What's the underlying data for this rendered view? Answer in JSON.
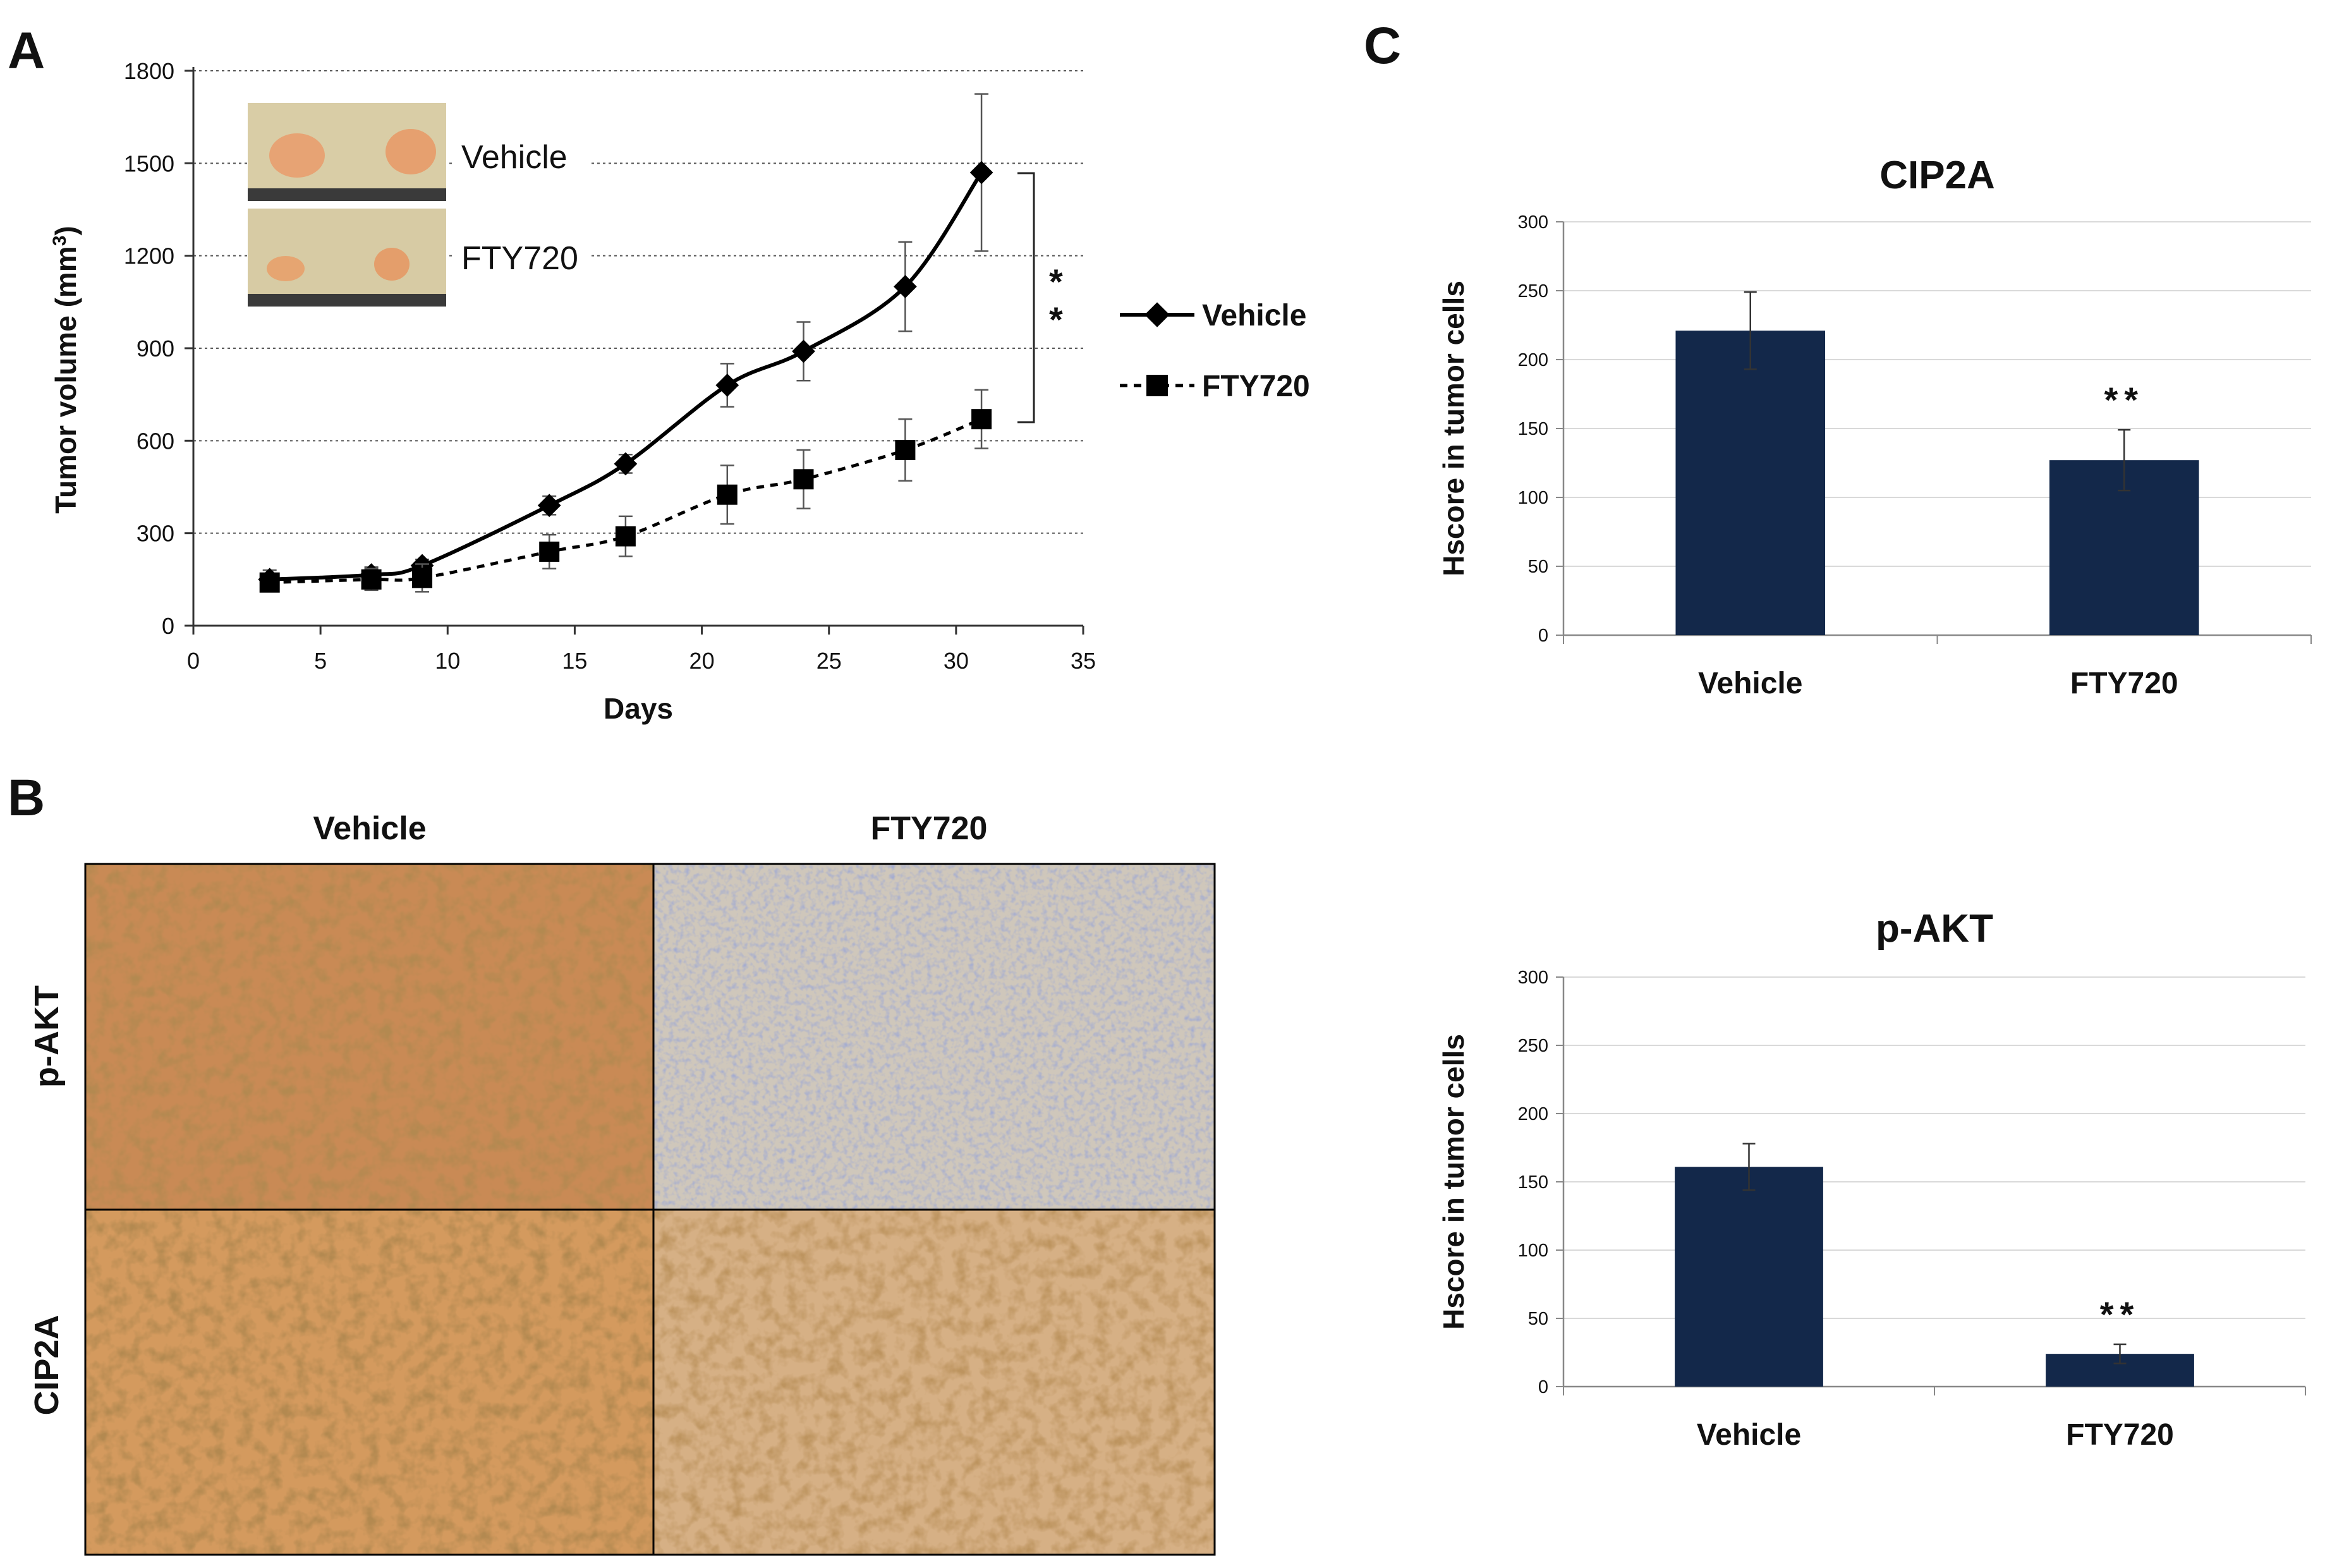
{
  "panels": {
    "a": {
      "letter": "A"
    },
    "b": {
      "letter": "B"
    },
    "c": {
      "letter": "C"
    }
  },
  "colors": {
    "bar_fill": "#13284a",
    "line": "#000000",
    "grid_dotted": "#555555",
    "grid_light": "#d9d9d9",
    "tissue_brown": "#b06a2f",
    "tissue_pale": "#d8cdb6",
    "tissue_blue": "#8e9cc4"
  },
  "panel_a": {
    "significance": [
      "*",
      "*"
    ],
    "inset": {
      "vehicle_label": "Vehicle",
      "fty720_label": "FTY720"
    },
    "legend": {
      "vehicle": "Vehicle",
      "fty720": "FTY720"
    }
  },
  "panel_b": {
    "col_headers": [
      "Vehicle",
      "FTY720"
    ],
    "row_headers": [
      "p-AKT",
      "CIP2A"
    ]
  },
  "chart_data": [
    {
      "type": "line",
      "title": "",
      "xlabel": "Days",
      "ylabel_main": "Tumor volume (mm",
      "ylabel_sup": "3",
      "ylabel_close": ")",
      "xlim": [
        0,
        35
      ],
      "ylim": [
        0,
        1800
      ],
      "xticks": [
        0,
        5,
        10,
        15,
        20,
        25,
        30,
        35
      ],
      "yticks": [
        0,
        300,
        600,
        900,
        1200,
        1500,
        1800
      ],
      "grid": "dotted horizontal",
      "legend_position": "right",
      "series": [
        {
          "name": "Vehicle",
          "marker": "diamond",
          "style": "solid",
          "x": [
            3,
            7,
            9,
            14,
            17,
            21,
            24,
            28,
            31
          ],
          "y": [
            150,
            165,
            195,
            390,
            525,
            780,
            890,
            1100,
            1470
          ],
          "err": [
            30,
            25,
            20,
            30,
            30,
            70,
            95,
            145,
            255
          ]
        },
        {
          "name": "FTY720",
          "marker": "square",
          "style": "dashed",
          "x": [
            3,
            7,
            9,
            14,
            17,
            21,
            24,
            28,
            31
          ],
          "y": [
            140,
            150,
            155,
            240,
            290,
            425,
            475,
            570,
            670
          ],
          "err": [
            25,
            35,
            45,
            55,
            65,
            95,
            95,
            100,
            95
          ]
        }
      ]
    },
    {
      "type": "bar",
      "title": "CIP2A",
      "ylabel": "Hscore in tumor cells",
      "ylim": [
        0,
        300
      ],
      "yticks": [
        0,
        50,
        100,
        150,
        200,
        250,
        300
      ],
      "categories": [
        "Vehicle",
        "FTY720"
      ],
      "values": [
        221,
        127
      ],
      "errors": [
        28,
        22
      ],
      "annotations": [
        "",
        "**"
      ]
    },
    {
      "type": "bar",
      "title": "p-AKT",
      "ylabel": "Hscore in tumor cells",
      "ylim": [
        0,
        300
      ],
      "yticks": [
        0,
        50,
        100,
        150,
        200,
        250,
        300
      ],
      "categories": [
        "Vehicle",
        "FTY720"
      ],
      "values": [
        161,
        24
      ],
      "errors": [
        17,
        7
      ],
      "annotations": [
        "",
        "**"
      ]
    }
  ]
}
